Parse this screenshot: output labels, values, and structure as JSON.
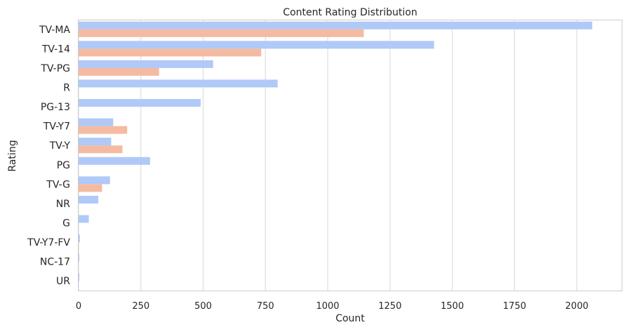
{
  "chart_data": {
    "type": "bar",
    "orientation": "horizontal",
    "title": "Content Rating Distribution",
    "xlabel": "Count",
    "ylabel": "Rating",
    "categories": [
      "TV-MA",
      "TV-14",
      "TV-PG",
      "R",
      "PG-13",
      "TV-Y7",
      "TV-Y",
      "PG",
      "TV-G",
      "NR",
      "G",
      "TV-Y7-FV",
      "NC-17",
      "UR"
    ],
    "series": [
      {
        "color": "#b0c9f7",
        "values": [
          2062,
          1427,
          540,
          799,
          490,
          139,
          131,
          287,
          126,
          79,
          41,
          5,
          3,
          3
        ]
      },
      {
        "color": "#f4bba2",
        "values": [
          1145,
          733,
          323,
          0,
          0,
          195,
          176,
          0,
          94,
          0,
          0,
          1,
          0,
          0
        ]
      }
    ],
    "xlim": [
      0,
      2180
    ],
    "xticks": [
      0,
      250,
      500,
      750,
      1000,
      1250,
      1500,
      1750,
      2000
    ],
    "grid": true,
    "grid_axis": "x"
  }
}
